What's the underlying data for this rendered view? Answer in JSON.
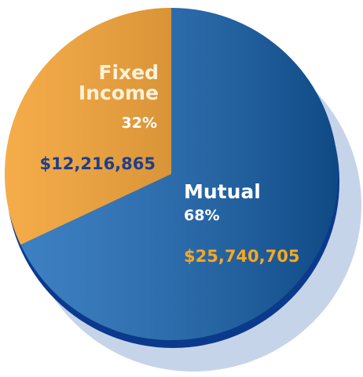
{
  "chart_data": {
    "type": "pie",
    "categories": [
      "Mutual",
      "Fixed Income"
    ],
    "values": [
      68,
      32
    ],
    "value_labels": [
      "68%",
      "32%"
    ],
    "amounts": [
      "$25,740,705",
      "$12,216,865"
    ],
    "colors": [
      "#1466b8",
      "#f39a22"
    ]
  }
}
